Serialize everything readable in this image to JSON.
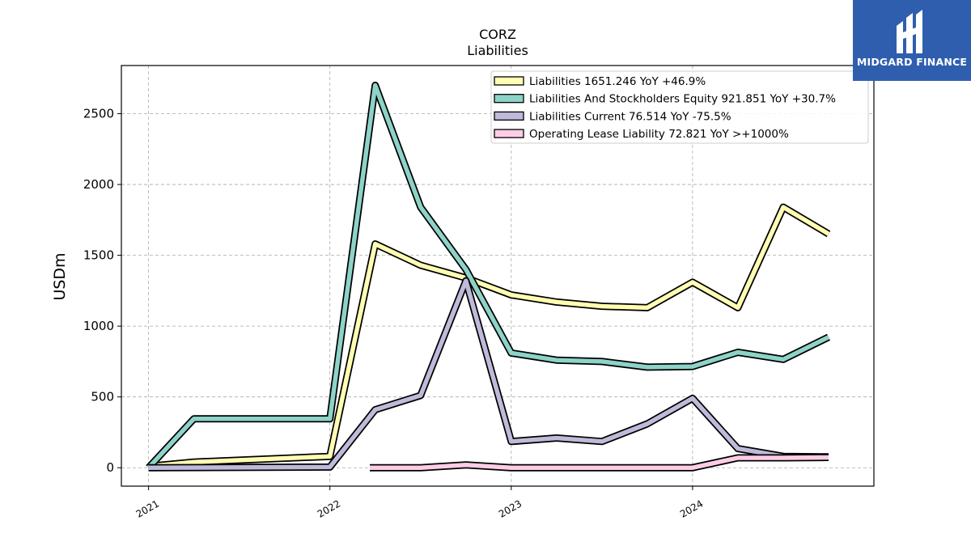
{
  "brand": {
    "name": "MIDGARD FINANCE",
    "logo_icon": "midgard-logo-icon",
    "color": "#2f5eae"
  },
  "chart_data": {
    "type": "line",
    "title": "CORZ",
    "subtitle": "Liabilities",
    "xlabel": "",
    "ylabel": "USDm",
    "xlim": [
      2020.85,
      2025.0
    ],
    "ylim": [
      -130,
      2840
    ],
    "x_ticks": [
      {
        "value": 2021,
        "label": "2021"
      },
      {
        "value": 2022,
        "label": "2022"
      },
      {
        "value": 2023,
        "label": "2023"
      },
      {
        "value": 2024,
        "label": "2024"
      }
    ],
    "y_ticks": [
      {
        "value": 0,
        "label": "0"
      },
      {
        "value": 500,
        "label": "500"
      },
      {
        "value": 1000,
        "label": "1000"
      },
      {
        "value": 1500,
        "label": "1500"
      },
      {
        "value": 2000,
        "label": "2000"
      },
      {
        "value": 2500,
        "label": "2500"
      }
    ],
    "grid": true,
    "legend_position": "top-right",
    "series": [
      {
        "name": "Liabilities  1651.246 YoY +46.9%",
        "color": "#ffffb3",
        "points": [
          [
            2021.0,
            10
          ],
          [
            2021.25,
            40
          ],
          [
            2022.0,
            80
          ],
          [
            2022.25,
            1580
          ],
          [
            2022.5,
            1430
          ],
          [
            2022.75,
            1340
          ],
          [
            2023.0,
            1220
          ],
          [
            2023.25,
            1170
          ],
          [
            2023.5,
            1140
          ],
          [
            2023.75,
            1130
          ],
          [
            2024.0,
            1310
          ],
          [
            2024.25,
            1130
          ],
          [
            2024.5,
            1840
          ],
          [
            2024.75,
            1651
          ]
        ]
      },
      {
        "name": "Liabilities And Stockholders Equity  921.851 YoY +30.7%",
        "color": "#8dd3c7",
        "points": [
          [
            2021.0,
            0
          ],
          [
            2021.25,
            345
          ],
          [
            2022.0,
            345
          ],
          [
            2022.25,
            2700
          ],
          [
            2022.5,
            1840
          ],
          [
            2022.75,
            1400
          ],
          [
            2023.0,
            810
          ],
          [
            2023.25,
            760
          ],
          [
            2023.5,
            750
          ],
          [
            2023.75,
            710
          ],
          [
            2024.0,
            715
          ],
          [
            2024.25,
            815
          ],
          [
            2024.5,
            765
          ],
          [
            2024.75,
            922
          ]
        ]
      },
      {
        "name": "Liabilities Current  76.514 YoY -75.5%",
        "color": "#bebada",
        "points": [
          [
            2021.0,
            0
          ],
          [
            2022.0,
            5
          ],
          [
            2022.25,
            410
          ],
          [
            2022.5,
            510
          ],
          [
            2022.75,
            1320
          ],
          [
            2023.0,
            185
          ],
          [
            2023.25,
            210
          ],
          [
            2023.5,
            185
          ],
          [
            2023.75,
            310
          ],
          [
            2024.0,
            490
          ],
          [
            2024.25,
            135
          ],
          [
            2024.5,
            80
          ],
          [
            2024.75,
            77
          ]
        ]
      },
      {
        "name": "Operating Lease Liability  72.821 YoY >+1000%",
        "color": "#fccde5",
        "points": [
          [
            2022.22,
            0
          ],
          [
            2022.5,
            0
          ],
          [
            2022.75,
            20
          ],
          [
            2023.0,
            0
          ],
          [
            2023.25,
            0
          ],
          [
            2023.5,
            0
          ],
          [
            2023.75,
            0
          ],
          [
            2024.0,
            0
          ],
          [
            2024.25,
            70
          ],
          [
            2024.5,
            70
          ],
          [
            2024.75,
            73
          ]
        ]
      }
    ]
  }
}
